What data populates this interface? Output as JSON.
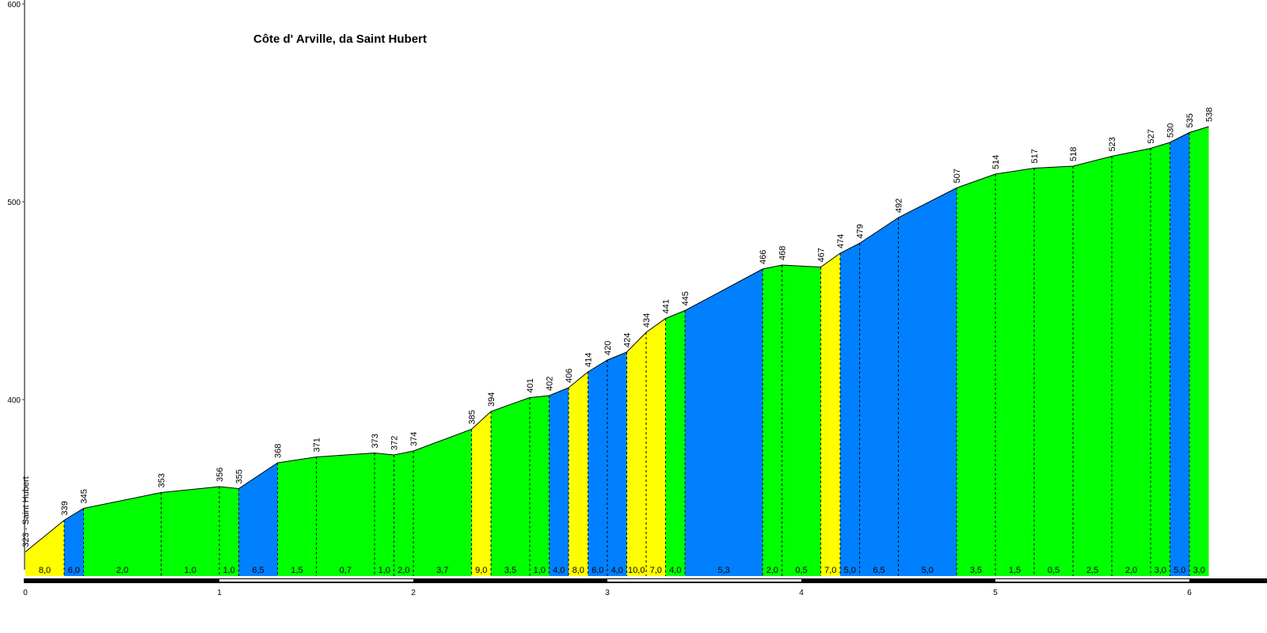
{
  "chart_data": {
    "type": "area",
    "title": "Côte d' Arville, da Saint Hubert",
    "start_label": "323 - Saint Hubert",
    "xlabel": "",
    "ylabel": "",
    "xlim": [
      0,
      6.4
    ],
    "ylim": [
      310,
      600
    ],
    "x_ticks": [
      0,
      1,
      2,
      3,
      4,
      5,
      6
    ],
    "y_ticks": [
      400,
      500,
      600
    ],
    "points": [
      {
        "x": 0.0,
        "y": 323
      },
      {
        "x": 0.2,
        "y": 339
      },
      {
        "x": 0.3,
        "y": 345
      },
      {
        "x": 0.7,
        "y": 353
      },
      {
        "x": 1.0,
        "y": 356
      },
      {
        "x": 1.1,
        "y": 355
      },
      {
        "x": 1.3,
        "y": 368
      },
      {
        "x": 1.5,
        "y": 371
      },
      {
        "x": 1.8,
        "y": 373
      },
      {
        "x": 1.9,
        "y": 372
      },
      {
        "x": 2.0,
        "y": 374
      },
      {
        "x": 2.3,
        "y": 385
      },
      {
        "x": 2.4,
        "y": 394
      },
      {
        "x": 2.6,
        "y": 401
      },
      {
        "x": 2.7,
        "y": 402
      },
      {
        "x": 2.8,
        "y": 406
      },
      {
        "x": 2.9,
        "y": 414
      },
      {
        "x": 3.0,
        "y": 420
      },
      {
        "x": 3.1,
        "y": 424
      },
      {
        "x": 3.2,
        "y": 434
      },
      {
        "x": 3.3,
        "y": 441
      },
      {
        "x": 3.4,
        "y": 445
      },
      {
        "x": 3.8,
        "y": 466
      },
      {
        "x": 3.9,
        "y": 468
      },
      {
        "x": 4.1,
        "y": 467
      },
      {
        "x": 4.2,
        "y": 474
      },
      {
        "x": 4.3,
        "y": 479
      },
      {
        "x": 4.5,
        "y": 492
      },
      {
        "x": 4.8,
        "y": 507
      },
      {
        "x": 5.0,
        "y": 514
      },
      {
        "x": 5.2,
        "y": 517
      },
      {
        "x": 5.4,
        "y": 518
      },
      {
        "x": 5.6,
        "y": 523
      },
      {
        "x": 5.8,
        "y": 527
      },
      {
        "x": 5.9,
        "y": 530
      },
      {
        "x": 6.0,
        "y": 535
      },
      {
        "x": 6.1,
        "y": 538
      }
    ],
    "segment_gradients": [
      "8,0",
      "6,0",
      "2,0",
      "1,0",
      "1,0",
      "6,5",
      "1,5",
      "0,7",
      "1,0",
      "2,0",
      "3,7",
      "9,0",
      "3,5",
      "1,0",
      "4,0",
      "8,0",
      "6,0",
      "4,0",
      "10,0",
      "7,0",
      "4,0",
      "5,3",
      "2,0",
      "0,5",
      "7,0",
      "5,0",
      "6,5",
      "5,0",
      "3,5",
      "1,5",
      "0,5",
      "2,5",
      "2,0",
      "3,0",
      "5,0",
      "3,0"
    ],
    "segment_colors": [
      "yellow",
      "blue",
      "green",
      "green",
      "green",
      "blue",
      "green",
      "green",
      "green",
      "green",
      "green",
      "yellow",
      "green",
      "green",
      "blue",
      "yellow",
      "blue",
      "blue",
      "yellow",
      "yellow",
      "green",
      "blue",
      "green",
      "green",
      "yellow",
      "blue",
      "blue",
      "blue",
      "green",
      "green",
      "green",
      "green",
      "green",
      "green",
      "blue",
      "green"
    ],
    "palette": {
      "yellow": "#ffff00",
      "blue": "#0080ff",
      "green": "#00ff00"
    },
    "grid": false
  }
}
